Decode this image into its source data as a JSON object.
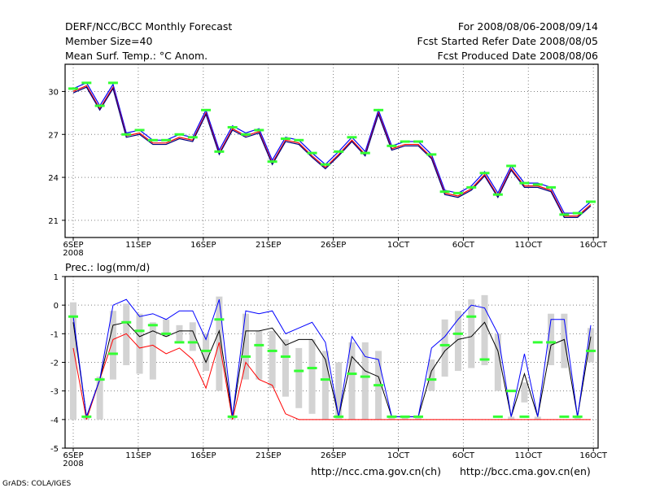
{
  "header": {
    "left": [
      "DERF/NCC/BCC Monthly Forecast",
      "Member Size=40",
      "Mean Surf. Temp.: °C Anom."
    ],
    "right": [
      "For 2008/08/06-2008/09/14",
      "Fcst Started Refer Date 2008/08/05",
      "Fcst Produced Date 2008/08/06"
    ]
  },
  "x_ticks": [
    "6SEP",
    "11SEP",
    "16SEP",
    "21SEP",
    "26SEP",
    "1OCT",
    "6OCT",
    "11OCT",
    "16OCT"
  ],
  "x_year": "2008",
  "footer": {
    "credit": "GrADS: COLA/IGES",
    "link_ch": "http://ncc.cma.gov.cn(ch)",
    "link_en": "http://bcc.cma.gov.cn(en)"
  },
  "colors": {
    "mean": "#ff0000",
    "upper": "#0000ff",
    "lower": "#000080",
    "middle": "#000000",
    "marker": "#33ff33",
    "bar": "#d3d3d3"
  },
  "chart_data": [
    {
      "type": "line",
      "title": "Mean Surf. Temp.: °C Anom.",
      "xlabel": "",
      "ylabel": "",
      "xlim": [
        0,
        40
      ],
      "ylim": [
        19.8,
        31.9
      ],
      "yticks": [
        21,
        24,
        27,
        30
      ],
      "x": [
        0,
        1,
        2,
        3,
        4,
        5,
        6,
        7,
        8,
        9,
        10,
        11,
        12,
        13,
        14,
        15,
        16,
        17,
        18,
        19,
        20,
        21,
        22,
        23,
        24,
        25,
        26,
        27,
        28,
        29,
        30,
        31,
        32,
        33,
        34,
        35,
        36,
        37,
        38,
        39
      ],
      "series": [
        {
          "name": "upper",
          "values": [
            30.2,
            30.6,
            29.0,
            30.5,
            27.1,
            27.3,
            26.6,
            26.6,
            27.0,
            26.8,
            28.7,
            25.9,
            27.6,
            27.1,
            27.4,
            25.2,
            26.8,
            26.6,
            25.7,
            24.9,
            25.8,
            26.8,
            25.8,
            28.7,
            26.2,
            26.5,
            26.5,
            25.6,
            23.1,
            22.9,
            23.4,
            24.4,
            22.9,
            24.8,
            23.6,
            23.6,
            23.3,
            21.5,
            21.5,
            22.3
          ]
        },
        {
          "name": "mean",
          "values": [
            30.0,
            30.4,
            28.8,
            30.3,
            26.9,
            27.1,
            26.4,
            26.4,
            26.8,
            26.6,
            28.5,
            25.7,
            27.4,
            26.9,
            27.2,
            25.0,
            26.6,
            26.4,
            25.5,
            24.7,
            25.6,
            26.6,
            25.6,
            28.5,
            26.0,
            26.3,
            26.3,
            25.4,
            22.9,
            22.7,
            23.2,
            24.2,
            22.7,
            24.6,
            23.4,
            23.4,
            23.1,
            21.3,
            21.3,
            22.1
          ]
        },
        {
          "name": "lower",
          "values": [
            29.9,
            30.3,
            28.7,
            30.2,
            26.8,
            27.0,
            26.3,
            26.3,
            26.7,
            26.5,
            28.4,
            25.6,
            27.3,
            26.8,
            27.1,
            24.9,
            26.5,
            26.3,
            25.4,
            24.6,
            25.5,
            26.5,
            25.5,
            28.4,
            25.9,
            26.2,
            26.2,
            25.3,
            22.8,
            22.6,
            23.1,
            24.1,
            22.6,
            24.5,
            23.3,
            23.3,
            23.0,
            21.2,
            21.2,
            22.0
          ]
        },
        {
          "name": "marker",
          "values": [
            30.2,
            30.6,
            29.0,
            30.6,
            27.0,
            27.3,
            26.6,
            26.6,
            27.0,
            26.8,
            28.7,
            25.8,
            27.5,
            27.0,
            27.3,
            25.1,
            26.7,
            26.6,
            25.7,
            24.9,
            25.8,
            26.8,
            25.7,
            28.7,
            26.2,
            26.5,
            26.5,
            25.6,
            23.0,
            22.9,
            23.3,
            24.3,
            22.8,
            24.8,
            23.6,
            23.5,
            23.3,
            21.4,
            21.5,
            22.3
          ]
        }
      ]
    },
    {
      "type": "bar",
      "title": "Prec.: log(mm/d)",
      "xlabel": "",
      "ylabel": "",
      "xlim": [
        0,
        40
      ],
      "ylim": [
        -5,
        1
      ],
      "yticks": [
        -5,
        -4,
        -3,
        -2,
        -1,
        0,
        1
      ],
      "x": [
        0,
        1,
        2,
        3,
        4,
        5,
        6,
        7,
        8,
        9,
        10,
        11,
        12,
        13,
        14,
        15,
        16,
        17,
        18,
        19,
        20,
        21,
        22,
        23,
        24,
        25,
        26,
        27,
        28,
        29,
        30,
        31,
        32,
        33,
        34,
        35,
        36,
        37,
        38,
        39
      ],
      "bar_top": [
        0.1,
        -3.9,
        -2.5,
        -0.2,
        0.05,
        -0.3,
        -0.6,
        -0.5,
        -0.7,
        -0.6,
        -1.0,
        0.3,
        -3.9,
        -0.3,
        -0.9,
        -0.9,
        -1.2,
        -1.5,
        -1.2,
        -1.6,
        -2.0,
        -1.3,
        -1.3,
        -1.6,
        -3.9,
        -3.9,
        -3.9,
        -1.9,
        -0.5,
        -0.2,
        0.2,
        0.35,
        -1.0,
        -3.9,
        -2.7,
        -3.9,
        -0.3,
        -0.3,
        -3.9,
        -0.8
      ],
      "bar_bottom": [
        -4,
        -4,
        -4,
        -2.6,
        -2.1,
        -2.4,
        -2.6,
        -1.1,
        -1.3,
        -1.6,
        -2.3,
        -3.0,
        -4,
        -2.6,
        -2.6,
        -2.9,
        -3.2,
        -3.6,
        -3.8,
        -4,
        -4,
        -4,
        -4,
        -4,
        -4,
        -4,
        -4,
        -3.0,
        -2.5,
        -2.3,
        -2.2,
        -2.1,
        -3.0,
        -4,
        -3.4,
        -4,
        -2.1,
        -2.2,
        -4,
        -2.0
      ],
      "series": [
        {
          "name": "upper",
          "values": [
            -0.4,
            -3.9,
            -2.6,
            0.0,
            0.2,
            -0.4,
            -0.3,
            -0.5,
            -0.2,
            -0.2,
            -1.2,
            0.2,
            -3.9,
            -0.2,
            -0.3,
            -0.2,
            -1.0,
            -0.8,
            -0.6,
            -1.3,
            -3.9,
            -1.1,
            -1.8,
            -1.9,
            -3.9,
            -3.9,
            -3.9,
            -1.5,
            -1.1,
            -0.5,
            0.0,
            -0.1,
            -1.0,
            -3.9,
            -1.7,
            -3.9,
            -0.5,
            -0.5,
            -3.9,
            -0.7
          ]
        },
        {
          "name": "middle",
          "values": [
            -0.6,
            -3.9,
            -2.6,
            -0.7,
            -0.6,
            -1.1,
            -0.9,
            -1.1,
            -0.9,
            -0.9,
            -2.0,
            -0.9,
            -3.9,
            -0.9,
            -0.9,
            -0.8,
            -1.4,
            -1.2,
            -1.2,
            -1.9,
            -3.9,
            -1.8,
            -2.3,
            -2.5,
            -3.9,
            -3.9,
            -3.9,
            -2.3,
            -1.6,
            -1.2,
            -1.1,
            -0.6,
            -1.6,
            -3.9,
            -2.4,
            -3.9,
            -1.4,
            -1.2,
            -3.9,
            -1.1
          ]
        },
        {
          "name": "mean",
          "values": [
            -1.5,
            -4.0,
            -2.6,
            -1.2,
            -1.0,
            -1.5,
            -1.4,
            -1.7,
            -1.5,
            -1.9,
            -2.9,
            -1.3,
            -4.0,
            -2.0,
            -2.6,
            -2.8,
            -3.8,
            -4.0,
            -4.0,
            -4.0,
            -4.0,
            -4.0,
            -4.0,
            -4.0,
            -4.0,
            -4.0,
            -4.0,
            -4.0,
            -4.0,
            -4.0,
            -4.0,
            -4.0,
            -4.0,
            -4.0,
            -4.0,
            -4.0,
            -4.0,
            -4.0,
            -4.0,
            -4.0
          ]
        },
        {
          "name": "marker",
          "values": [
            -0.4,
            -3.9,
            -2.6,
            -1.7,
            -0.6,
            -0.9,
            -0.7,
            -1.0,
            -1.3,
            -1.3,
            -1.6,
            -0.5,
            -3.9,
            -1.8,
            -1.4,
            -1.6,
            -1.8,
            -2.3,
            -2.2,
            -2.6,
            -3.9,
            -2.4,
            -2.5,
            -2.8,
            -3.9,
            -3.9,
            -3.9,
            -2.6,
            -1.4,
            -1.0,
            -0.4,
            -1.9,
            -3.9,
            -3.0,
            -3.9,
            -1.3,
            -1.3,
            -3.9,
            -3.9,
            -1.6
          ]
        }
      ]
    }
  ]
}
